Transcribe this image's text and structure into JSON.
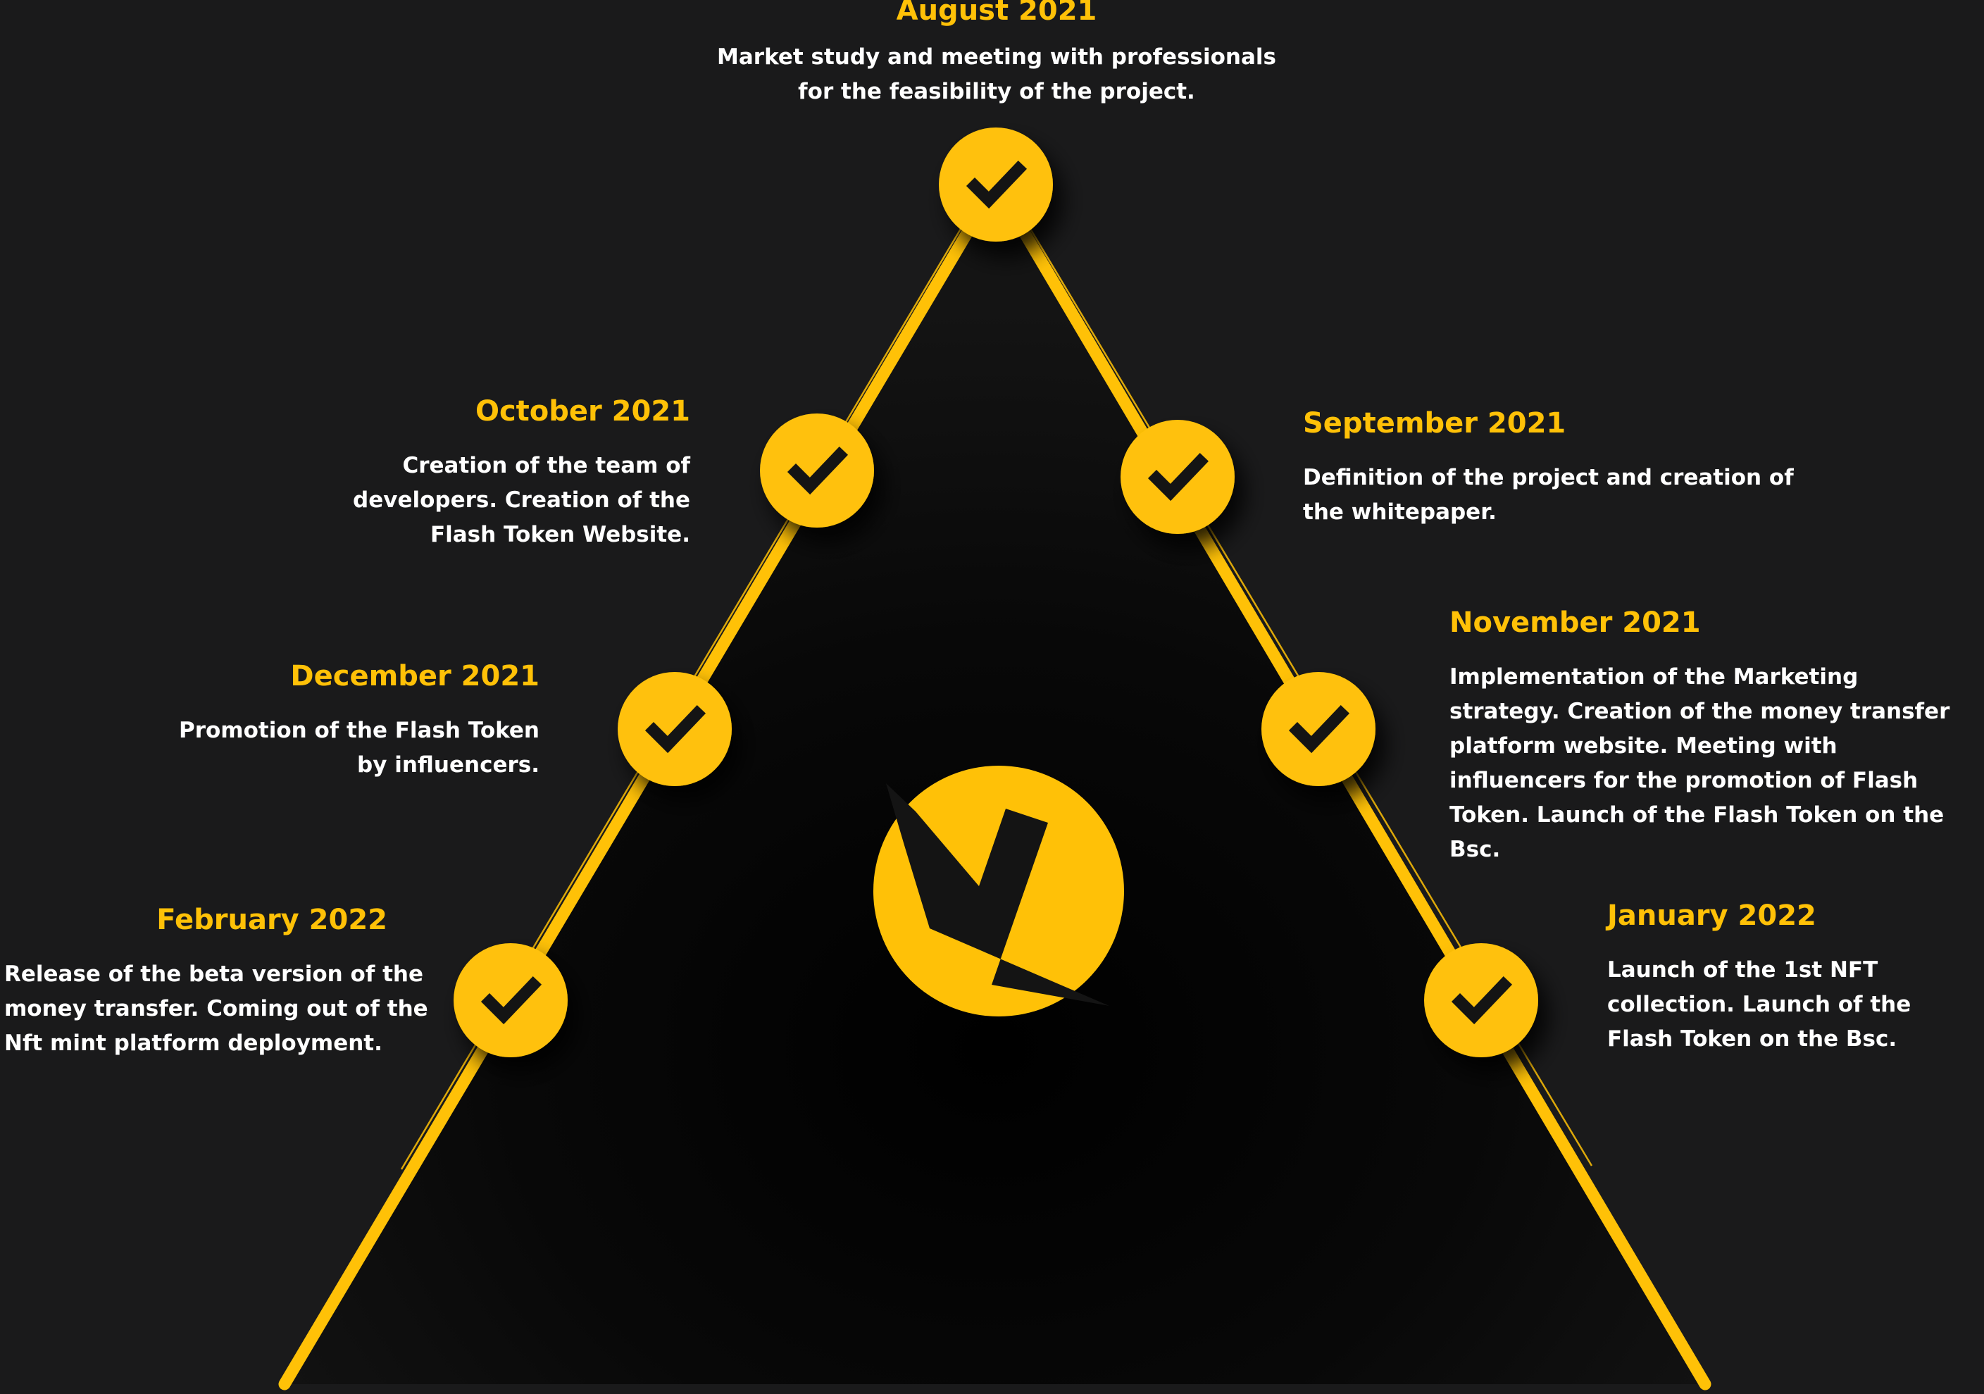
{
  "colors": {
    "background": "#1a1a1b",
    "accent": "#ffc107",
    "text": "#ffffff",
    "check": "#141414"
  },
  "milestones": [
    {
      "date": "August 2021",
      "description": "Market study and meeting with professionals for the feasibility of the project.",
      "status_icon": "check-icon"
    },
    {
      "date": "September 2021",
      "description": "Definition of the project and creation of the whitepaper.",
      "status_icon": "check-icon"
    },
    {
      "date": "October 2021",
      "description": "Creation of the team of developers. Creation of the Flash Token Website.",
      "status_icon": "check-icon"
    },
    {
      "date": "November 2021",
      "description": "Implementation of the Marketing strategy. Creation of the money transfer platform website. Meeting with influencers for the promotion of Flash Token. Launch of the Flash Token on the Bsc.",
      "status_icon": "check-icon"
    },
    {
      "date": "December 2021",
      "description": "Promotion of the Flash Token by influencers.",
      "status_icon": "check-icon"
    },
    {
      "date": "January 2022",
      "description": "Launch of the 1st NFT collection. Launch of the Flash Token on the Bsc.",
      "status_icon": "check-icon"
    },
    {
      "date": "February 2022",
      "description": "Release of the beta version of the money transfer. Coming out of the Nft mint platform deployment.",
      "status_icon": "check-icon"
    }
  ],
  "logo": {
    "icon": "flash-token-logo-icon"
  }
}
